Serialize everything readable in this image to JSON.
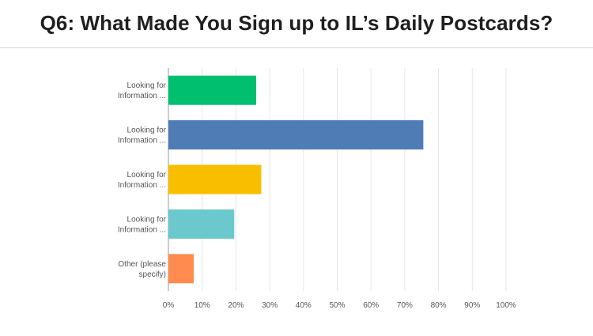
{
  "title": "Q6: What Made You Sign up to IL’s Daily Postcards?",
  "chart_data": {
    "type": "bar",
    "orientation": "horizontal",
    "title": "Q6: What Made You Sign up to IL’s Daily Postcards?",
    "categories": [
      [
        "Looking for",
        "Information ..."
      ],
      [
        "Looking for",
        "Information ..."
      ],
      [
        "Looking for",
        "Information ..."
      ],
      [
        "Looking for",
        "Information ..."
      ],
      [
        "Other (please",
        "specify)"
      ]
    ],
    "values": [
      26,
      75.5,
      27.5,
      19.5,
      7.5
    ],
    "colors": [
      "#00bf6f",
      "#507cb6",
      "#f9be00",
      "#6bc8cd",
      "#ff8b4f"
    ],
    "xlim": [
      0,
      100
    ],
    "xticks": [
      0,
      10,
      20,
      30,
      40,
      50,
      60,
      70,
      80,
      90,
      100
    ],
    "xtick_labels": [
      "0%",
      "10%",
      "20%",
      "30%",
      "40%",
      "50%",
      "60%",
      "70%",
      "80%",
      "90%",
      "100%"
    ],
    "grid": true,
    "legend": false
  }
}
